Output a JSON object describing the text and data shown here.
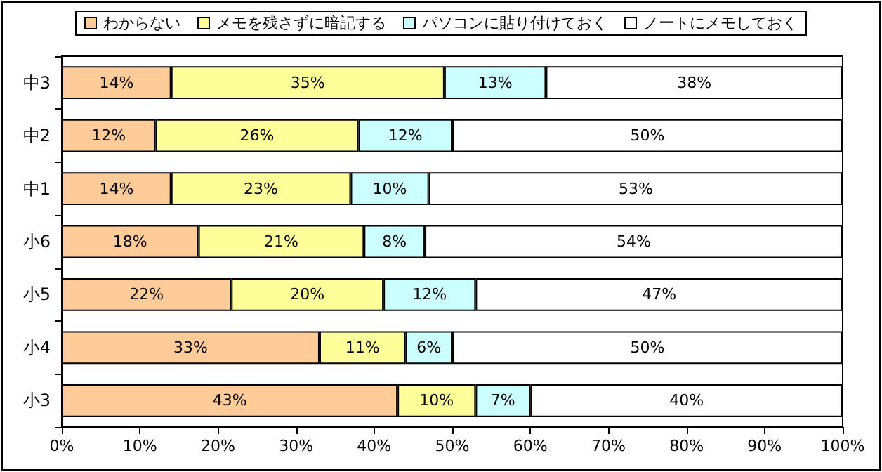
{
  "chart_data": {
    "type": "bar",
    "orientation": "horizontal",
    "stacked": true,
    "categories": [
      "中3",
      "中2",
      "中1",
      "小6",
      "小5",
      "小4",
      "小3"
    ],
    "series": [
      {
        "name": "わからない",
        "color": "#ffcc99",
        "values": [
          14,
          12,
          14,
          17.5,
          21.7,
          33,
          43
        ],
        "value_labels": [
          "14%",
          "12%",
          "14%",
          "18%",
          "22%",
          "33%",
          "43%"
        ]
      },
      {
        "name": "メモを残さずに暗記する",
        "color": "#ffff99",
        "values": [
          35,
          26,
          23,
          21.2,
          19.5,
          11,
          10
        ],
        "value_labels": [
          "35%",
          "26%",
          "23%",
          "21%",
          "20%",
          "11%",
          "10%"
        ]
      },
      {
        "name": "パソコンに貼り付けておく",
        "color": "#ccffff",
        "values": [
          13,
          12,
          10,
          7.8,
          11.8,
          6,
          7
        ],
        "value_labels": [
          "13%",
          "12%",
          "10%",
          "8%",
          "12%",
          "6%",
          "7%"
        ]
      },
      {
        "name": "ノートにメモしておく",
        "color": "#ffffff",
        "values": [
          38,
          50,
          53,
          53.5,
          47,
          50,
          40
        ],
        "value_labels": [
          "38%",
          "50%",
          "53%",
          "54%",
          "47%",
          "50%",
          "40%"
        ]
      }
    ],
    "xlim": [
      0,
      100
    ],
    "xticks": [
      {
        "value": 0,
        "label": "0%"
      },
      {
        "value": 10,
        "label": "10%"
      },
      {
        "value": 20,
        "label": "20%"
      },
      {
        "value": 30,
        "label": "30%"
      },
      {
        "value": 40,
        "label": "40%"
      },
      {
        "value": 50,
        "label": "50%"
      },
      {
        "value": 60,
        "label": "60%"
      },
      {
        "value": 70,
        "label": "70%"
      },
      {
        "value": 80,
        "label": "80%"
      },
      {
        "value": 90,
        "label": "90%"
      },
      {
        "value": 100,
        "label": "100%"
      }
    ],
    "legend": "top",
    "grid": false
  }
}
